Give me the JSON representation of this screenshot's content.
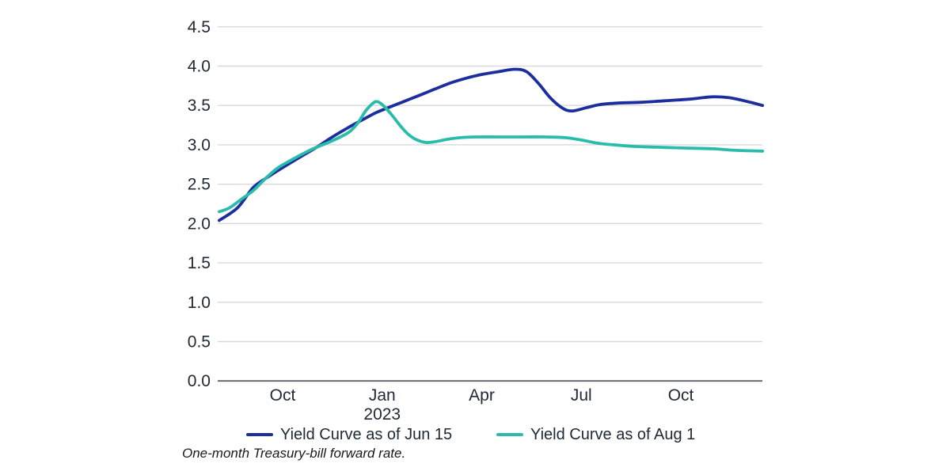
{
  "chart_data": {
    "type": "line",
    "title": "",
    "xlabel": "",
    "ylabel": "",
    "x_unit": "months relative to the Oct 2022 tick (0 = Oct 2022, 3 = Jan 2023, 6 = Apr 2023, 9 = Jul 2023, 12 = Oct 2023)",
    "x_range": [
      -1.91,
      14.46
    ],
    "ylim": [
      0,
      4.5
    ],
    "y_tick_step": 0.5,
    "y_tick_labels": [
      "0.0",
      "0.5",
      "1.0",
      "1.5",
      "2.0",
      "2.5",
      "3.0",
      "3.5",
      "4.0",
      "4.5"
    ],
    "x_ticks": [
      {
        "t": 0,
        "label": "Oct"
      },
      {
        "t": 3,
        "label": "Jan",
        "sublabel": "2023"
      },
      {
        "t": 6,
        "label": "Apr"
      },
      {
        "t": 9,
        "label": "Jul"
      },
      {
        "t": 12,
        "label": "Oct"
      }
    ],
    "grid": "horizontal gridlines every 0.5, light gray; darker baseline at 0.0",
    "legend_position": "bottom",
    "series": [
      {
        "name": "Yield Curve as of Jun 15",
        "color": "#1c2e9e",
        "points": [
          [
            -1.91,
            2.04
          ],
          [
            -1.36,
            2.2
          ],
          [
            -0.88,
            2.46
          ],
          [
            -0.41,
            2.6
          ],
          [
            0,
            2.71
          ],
          [
            0.55,
            2.85
          ],
          [
            1.03,
            2.97
          ],
          [
            1.5,
            3.1
          ],
          [
            1.98,
            3.22
          ],
          [
            2.46,
            3.33
          ],
          [
            2.82,
            3.41
          ],
          [
            3.17,
            3.47
          ],
          [
            3.65,
            3.55
          ],
          [
            4.13,
            3.63
          ],
          [
            4.6,
            3.71
          ],
          [
            5.08,
            3.79
          ],
          [
            5.56,
            3.85
          ],
          [
            5.96,
            3.89
          ],
          [
            6.51,
            3.93
          ],
          [
            6.99,
            3.96
          ],
          [
            7.35,
            3.93
          ],
          [
            7.71,
            3.78
          ],
          [
            8.06,
            3.6
          ],
          [
            8.42,
            3.47
          ],
          [
            8.71,
            3.43
          ],
          [
            9.14,
            3.47
          ],
          [
            9.54,
            3.51
          ],
          [
            10.09,
            3.53
          ],
          [
            10.81,
            3.54
          ],
          [
            11.52,
            3.56
          ],
          [
            12.24,
            3.58
          ],
          [
            12.95,
            3.61
          ],
          [
            13.43,
            3.6
          ],
          [
            13.91,
            3.56
          ],
          [
            14.46,
            3.5
          ]
        ]
      },
      {
        "name": "Yield Curve as of Aug 1",
        "color": "#2abcab",
        "points": [
          [
            -1.91,
            2.15
          ],
          [
            -1.6,
            2.2
          ],
          [
            -1.24,
            2.31
          ],
          [
            -0.88,
            2.42
          ],
          [
            -0.52,
            2.57
          ],
          [
            -0.17,
            2.7
          ],
          [
            0.19,
            2.79
          ],
          [
            0.67,
            2.9
          ],
          [
            1.03,
            2.97
          ],
          [
            1.38,
            3.03
          ],
          [
            1.74,
            3.1
          ],
          [
            2.03,
            3.17
          ],
          [
            2.27,
            3.28
          ],
          [
            2.5,
            3.43
          ],
          [
            2.7,
            3.52
          ],
          [
            2.84,
            3.55
          ],
          [
            3.03,
            3.5
          ],
          [
            3.29,
            3.38
          ],
          [
            3.53,
            3.25
          ],
          [
            3.77,
            3.14
          ],
          [
            4.01,
            3.07
          ],
          [
            4.32,
            3.03
          ],
          [
            4.6,
            3.04
          ],
          [
            4.96,
            3.07
          ],
          [
            5.32,
            3.09
          ],
          [
            5.8,
            3.1
          ],
          [
            6.51,
            3.1
          ],
          [
            7.23,
            3.1
          ],
          [
            7.94,
            3.1
          ],
          [
            8.54,
            3.09
          ],
          [
            9.02,
            3.06
          ],
          [
            9.5,
            3.02
          ],
          [
            9.97,
            3.0
          ],
          [
            10.57,
            2.98
          ],
          [
            11.28,
            2.97
          ],
          [
            12.0,
            2.96
          ],
          [
            12.95,
            2.95
          ],
          [
            13.67,
            2.93
          ],
          [
            14.46,
            2.92
          ]
        ]
      }
    ],
    "footnote": "One-month Treasury-bill forward rate."
  },
  "colors": {
    "gridline": "#d9d9d9",
    "axis_line": "#5f6368",
    "tick_text": "#202a36"
  }
}
